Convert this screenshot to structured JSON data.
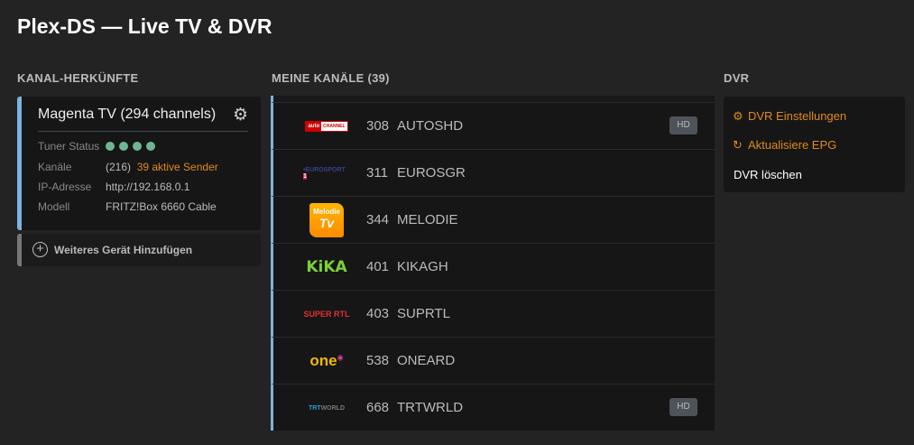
{
  "title": "Plex-DS — Live TV & DVR",
  "sections": {
    "sources": "KANAL-HERKÜNFTE",
    "channels": "MEINE KANÄLE (39)",
    "dvr": "DVR"
  },
  "device": {
    "name": "Magenta TV (294 channels)",
    "tuner_label": "Tuner Status",
    "tuner_count": 4,
    "tuner_color": "#6fb595",
    "channels_label": "Kanäle",
    "channels_total": "(216)",
    "channels_active": "39 aktive Sender",
    "ip_label": "IP-Adresse",
    "ip": "http://192.168.0.1",
    "model_label": "Modell",
    "model": "FRITZ!Box 6660 Cable"
  },
  "add_device": "Weiteres Gerät Hinzufügen",
  "channels": [
    {
      "num": "308",
      "name": "AUTOSHD",
      "hd": "HD",
      "logo": "auto motor sport channel"
    },
    {
      "num": "311",
      "name": "EUROSGR",
      "hd": "",
      "logo": "EUROSPORT 1"
    },
    {
      "num": "344",
      "name": "MELODIE",
      "hd": "",
      "logo": "Melodie TV"
    },
    {
      "num": "401",
      "name": "KIKAGH",
      "hd": "",
      "logo": "KiKA"
    },
    {
      "num": "403",
      "name": "SUPRTL",
      "hd": "",
      "logo": "SUPER RTL"
    },
    {
      "num": "538",
      "name": "ONEARD",
      "hd": "",
      "logo": "one"
    },
    {
      "num": "668",
      "name": "TRTWRLD",
      "hd": "HD",
      "logo": "TRT WORLD"
    }
  ],
  "dvr": {
    "settings": "DVR Einstellungen",
    "refresh": "Aktualisiere EPG",
    "delete": "DVR löschen"
  },
  "colors": {
    "accent": "#e08a1e",
    "source_bar": "#7db3e0"
  }
}
